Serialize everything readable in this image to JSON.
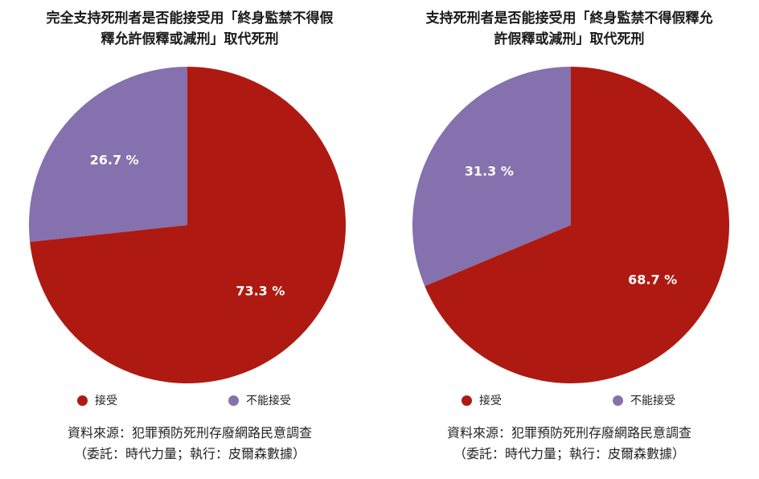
{
  "colors": {
    "accept": "#ae1a12",
    "reject": "#8571ad"
  },
  "chart_data": [
    {
      "type": "pie",
      "title": "完全支持死刑者是否能接受用「終身監禁不得假釋允許假釋或減刑」取代死刑",
      "title_lines": [
        "完全支持死刑者是否能接受用「終身監禁不得假",
        "釋允許假釋或減刑」取代死刑"
      ],
      "categories": [
        "接受",
        "不能接受"
      ],
      "values": [
        73.3,
        26.7
      ],
      "value_labels": [
        "73.3 %",
        "26.7 %"
      ],
      "legend": [
        "接受",
        "不能接受"
      ],
      "legend_position": "bottom",
      "source_lines": [
        "資料來源：犯罪預防死刑存廢網路民意調查",
        "（委託：時代力量；執行：皮爾森數據）"
      ]
    },
    {
      "type": "pie",
      "title": "支持死刑者是否能接受用「終身監禁不得假釋允許假釋或減刑」取代死刑",
      "title_lines": [
        "支持死刑者是否能接受用「終身監禁不得假釋允",
        "許假釋或減刑」取代死刑"
      ],
      "categories": [
        "接受",
        "不能接受"
      ],
      "values": [
        68.7,
        31.3
      ],
      "value_labels": [
        "68.7 %",
        "31.3 %"
      ],
      "legend": [
        "接受",
        "不能接受"
      ],
      "legend_position": "bottom",
      "source_lines": [
        "資料來源：犯罪預防死刑存廢網路民意調查",
        "（委託：時代力量；執行：皮爾森數據）"
      ]
    }
  ]
}
